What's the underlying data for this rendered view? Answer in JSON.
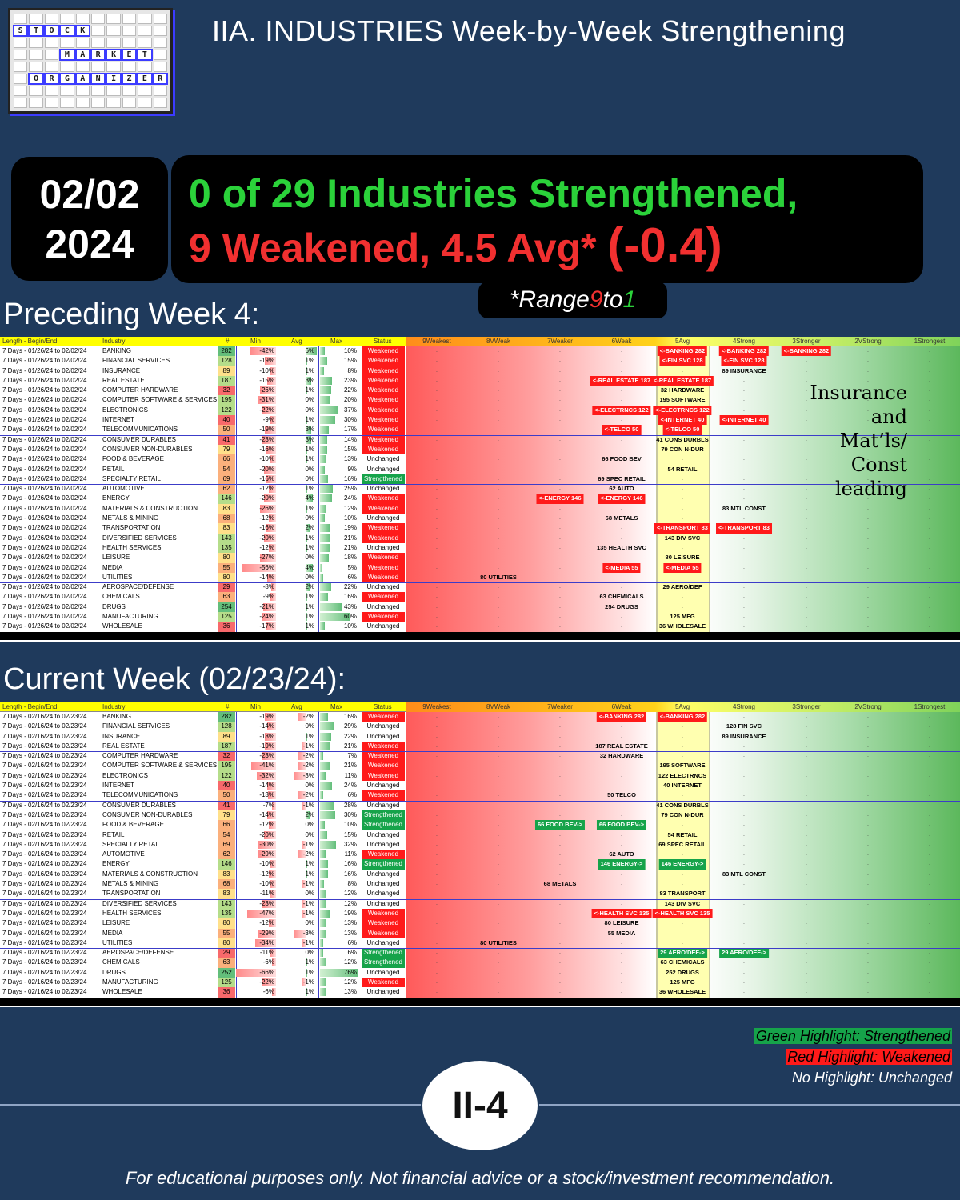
{
  "logo": {
    "words": [
      "STOCK",
      "MARKET",
      "ORGANIZER"
    ]
  },
  "title": "IIA. INDUSTRIES Week-by-Week Strengthening",
  "date": {
    "line1": "02/02",
    "line2": "2024"
  },
  "headline": {
    "line1": "0 of 29 Industries Strengthened,",
    "line2": "9 Weakened, 4.5 Avg*",
    "change": "(-0.4)"
  },
  "range": {
    "prefix": "*Range ",
    "high": "9",
    "mid": " to ",
    "low": "1"
  },
  "colors": {
    "green": "#16a34a",
    "red": "#ff1a1a",
    "headline_green": "#2bd23a",
    "headline_red": "#f13030",
    "background": "#1f3a5c"
  },
  "table_headers": {
    "length": "Length - Begin/End",
    "industry": "Industry",
    "count": "#",
    "min": "Min",
    "avg": "Avg",
    "max": "Max",
    "status": "Status",
    "scale": [
      "9Weakest",
      "8VWeak",
      "7Weaker",
      "6Weak",
      "5Avg",
      "4Strong",
      "3Stronger",
      "2VStrong",
      "1Strongest"
    ]
  },
  "preceding": {
    "title": "Preceding Week 4:",
    "period": "7 Days - 01/26/24 to 02/02/24",
    "note": "Insurance and Mat’ls/ Const leading",
    "rows": [
      {
        "industry": "BANKING",
        "count": "282",
        "min": "-42%",
        "avg": "6%",
        "max": "10%",
        "status": "Weakened",
        "labels": [
          [
            4,
            "<-BANKING 282",
            "r"
          ],
          [
            5,
            "<-BANKING 282",
            "r"
          ],
          [
            6,
            "<-BANKING 282",
            "r"
          ]
        ]
      },
      {
        "industry": "FINANCIAL SERVICES",
        "count": "128",
        "min": "-19%",
        "avg": "1%",
        "max": "15%",
        "status": "Weakened",
        "labels": [
          [
            4,
            "<-FIN SVC 128",
            "r"
          ],
          [
            5,
            "<-FIN SVC 128",
            "r"
          ]
        ]
      },
      {
        "industry": "INSURANCE",
        "count": "89",
        "min": "-10%",
        "avg": "1%",
        "max": "8%",
        "status": "Weakened",
        "labels": [
          [
            5,
            "89 INSURANCE",
            ""
          ]
        ]
      },
      {
        "industry": "REAL ESTATE",
        "count": "187",
        "min": "-15%",
        "avg": "3%",
        "max": "23%",
        "status": "Weakened",
        "labels": [
          [
            3,
            "<-REAL ESTATE 187",
            "r"
          ],
          [
            4,
            "<-REAL ESTATE 187",
            "r"
          ]
        ]
      },
      {
        "industry": "COMPUTER HARDWARE",
        "count": "32",
        "min": "-26%",
        "avg": "1%",
        "max": "22%",
        "status": "Weakened",
        "labels": [
          [
            4,
            "32 HARDWARE",
            ""
          ]
        ]
      },
      {
        "industry": "COMPUTER SOFTWARE & SERVICES",
        "count": "195",
        "min": "-31%",
        "avg": "0%",
        "max": "20%",
        "status": "Weakened",
        "labels": [
          [
            4,
            "195 SOFTWARE",
            ""
          ]
        ]
      },
      {
        "industry": "ELECTRONICS",
        "count": "122",
        "min": "-22%",
        "avg": "0%",
        "max": "37%",
        "status": "Weakened",
        "labels": [
          [
            3,
            "<-ELECTRNCS 122",
            "r"
          ],
          [
            4,
            "<-ELECTRNCS 122",
            "r"
          ]
        ]
      },
      {
        "industry": "INTERNET",
        "count": "40",
        "min": "-9%",
        "avg": "1%",
        "max": "30%",
        "status": "Weakened",
        "labels": [
          [
            4,
            "<-INTERNET 40",
            "r"
          ],
          [
            5,
            "<-INTERNET 40",
            "r"
          ]
        ]
      },
      {
        "industry": "TELECOMMUNICATIONS",
        "count": "50",
        "min": "-19%",
        "avg": "3%",
        "max": "17%",
        "status": "Weakened",
        "labels": [
          [
            3,
            "<-TELCO 50",
            "r"
          ],
          [
            4,
            "<-TELCO 50",
            "r"
          ]
        ]
      },
      {
        "industry": "CONSUMER DURABLES",
        "count": "41",
        "min": "-23%",
        "avg": "3%",
        "max": "14%",
        "status": "Weakened",
        "labels": [
          [
            4,
            "41 CONS DURBLS",
            ""
          ]
        ]
      },
      {
        "industry": "CONSUMER NON-DURABLES",
        "count": "79",
        "min": "-16%",
        "avg": "1%",
        "max": "15%",
        "status": "Weakened",
        "labels": [
          [
            4,
            "79 CON N-DUR",
            ""
          ]
        ]
      },
      {
        "industry": "FOOD & BEVERAGE",
        "count": "66",
        "min": "-10%",
        "avg": "1%",
        "max": "13%",
        "status": "Unchanged",
        "labels": [
          [
            3,
            "66 FOOD BEV",
            ""
          ]
        ]
      },
      {
        "industry": "RETAIL",
        "count": "54",
        "min": "-20%",
        "avg": "0%",
        "max": "9%",
        "status": "Unchanged",
        "labels": [
          [
            4,
            "54 RETAIL",
            ""
          ]
        ]
      },
      {
        "industry": "SPECIALTY RETAIL",
        "count": "69",
        "min": "-16%",
        "avg": "0%",
        "max": "16%",
        "status": "Strengthened",
        "labels": [
          [
            3,
            "69 SPEC RETAIL",
            ""
          ]
        ]
      },
      {
        "industry": "AUTOMOTIVE",
        "count": "62",
        "min": "-12%",
        "avg": "1%",
        "max": "25%",
        "status": "Unchanged",
        "labels": [
          [
            3,
            "62 AUTO",
            ""
          ]
        ]
      },
      {
        "industry": "ENERGY",
        "count": "146",
        "min": "-20%",
        "avg": "4%",
        "max": "24%",
        "status": "Weakened",
        "labels": [
          [
            2,
            "<-ENERGY 146",
            "r"
          ],
          [
            3,
            "<-ENERGY 146",
            "r"
          ]
        ]
      },
      {
        "industry": "MATERIALS & CONSTRUCTION",
        "count": "83",
        "min": "-26%",
        "avg": "1%",
        "max": "12%",
        "status": "Weakened",
        "labels": [
          [
            5,
            "83 MTL CONST",
            ""
          ]
        ]
      },
      {
        "industry": "METALS & MINING",
        "count": "68",
        "min": "-12%",
        "avg": "0%",
        "max": "10%",
        "status": "Unchanged",
        "labels": [
          [
            3,
            "68 METALS",
            ""
          ]
        ]
      },
      {
        "industry": "TRANSPORTATION",
        "count": "83",
        "min": "-16%",
        "avg": "2%",
        "max": "19%",
        "status": "Weakened",
        "labels": [
          [
            4,
            "<-TRANSPORT 83",
            "r"
          ],
          [
            5,
            "<-TRANSPORT 83",
            "r"
          ]
        ]
      },
      {
        "industry": "DIVERSIFIED SERVICES",
        "count": "143",
        "min": "-20%",
        "avg": "1%",
        "max": "21%",
        "status": "Weakened",
        "labels": [
          [
            4,
            "143 DIV SVC",
            ""
          ]
        ]
      },
      {
        "industry": "HEALTH SERVICES",
        "count": "135",
        "min": "-12%",
        "avg": "1%",
        "max": "21%",
        "status": "Unchanged",
        "labels": [
          [
            3,
            "135 HEALTH SVC",
            ""
          ]
        ]
      },
      {
        "industry": "LEISURE",
        "count": "80",
        "min": "-27%",
        "avg": "0%",
        "max": "18%",
        "status": "Weakened",
        "labels": [
          [
            4,
            "80 LEISURE",
            ""
          ]
        ]
      },
      {
        "industry": "MEDIA",
        "count": "55",
        "min": "-56%",
        "avg": "4%",
        "max": "5%",
        "status": "Weakened",
        "labels": [
          [
            3,
            "<-MEDIA 55",
            "r"
          ],
          [
            4,
            "<-MEDIA 55",
            "r"
          ]
        ]
      },
      {
        "industry": "UTILITIES",
        "count": "80",
        "min": "-14%",
        "avg": "0%",
        "max": "6%",
        "status": "Weakened",
        "labels": [
          [
            1,
            "80 UTILITIES",
            ""
          ]
        ]
      },
      {
        "industry": "AEROSPACE/DEFENSE",
        "count": "29",
        "min": "-8%",
        "avg": "2%",
        "max": "22%",
        "status": "Unchanged",
        "labels": [
          [
            4,
            "29 AERO/DEF",
            ""
          ]
        ]
      },
      {
        "industry": "CHEMICALS",
        "count": "63",
        "min": "-9%",
        "avg": "1%",
        "max": "16%",
        "status": "Weakened",
        "labels": [
          [
            3,
            "63 CHEMICALS",
            ""
          ]
        ]
      },
      {
        "industry": "DRUGS",
        "count": "254",
        "min": "-21%",
        "avg": "1%",
        "max": "43%",
        "status": "Unchanged",
        "labels": [
          [
            3,
            "254 DRUGS",
            ""
          ]
        ]
      },
      {
        "industry": "MANUFACTURING",
        "count": "125",
        "min": "-24%",
        "avg": "1%",
        "max": "60%",
        "status": "Weakened",
        "labels": [
          [
            4,
            "125 MFG",
            ""
          ]
        ]
      },
      {
        "industry": "WHOLESALE",
        "count": "36",
        "min": "-17%",
        "avg": "1%",
        "max": "10%",
        "status": "Unchanged",
        "labels": [
          [
            4,
            "36 WHOLESALE",
            ""
          ]
        ]
      }
    ]
  },
  "current": {
    "title": "Current Week (02/23/24):",
    "period": "7 Days - 02/16/24 to 02/23/24",
    "rows": [
      {
        "industry": "BANKING",
        "count": "282",
        "min": "-19%",
        "avg": "-2%",
        "max": "16%",
        "status": "Weakened",
        "labels": [
          [
            3,
            "<-BANKING 282",
            "r"
          ],
          [
            4,
            "<-BANKING 282",
            "r"
          ]
        ]
      },
      {
        "industry": "FINANCIAL SERVICES",
        "count": "128",
        "min": "-14%",
        "avg": "0%",
        "max": "29%",
        "status": "Unchanged",
        "labels": [
          [
            5,
            "128 FIN SVC",
            ""
          ]
        ]
      },
      {
        "industry": "INSURANCE",
        "count": "89",
        "min": "-18%",
        "avg": "1%",
        "max": "22%",
        "status": "Unchanged",
        "labels": [
          [
            5,
            "89 INSURANCE",
            ""
          ]
        ]
      },
      {
        "industry": "REAL ESTATE",
        "count": "187",
        "min": "-19%",
        "avg": "-1%",
        "max": "21%",
        "status": "Weakened",
        "labels": [
          [
            3,
            "187 REAL ESTATE",
            ""
          ]
        ]
      },
      {
        "industry": "COMPUTER HARDWARE",
        "count": "32",
        "min": "-23%",
        "avg": "-2%",
        "max": "7%",
        "status": "Weakened",
        "labels": [
          [
            3,
            "32 HARDWARE",
            ""
          ]
        ]
      },
      {
        "industry": "COMPUTER SOFTWARE & SERVICES",
        "count": "195",
        "min": "-41%",
        "avg": "-2%",
        "max": "21%",
        "status": "Weakened",
        "labels": [
          [
            4,
            "195 SOFTWARE",
            ""
          ]
        ]
      },
      {
        "industry": "ELECTRONICS",
        "count": "122",
        "min": "-32%",
        "avg": "-3%",
        "max": "11%",
        "status": "Weakened",
        "labels": [
          [
            4,
            "122 ELECTRNCS",
            ""
          ]
        ]
      },
      {
        "industry": "INTERNET",
        "count": "40",
        "min": "-14%",
        "avg": "0%",
        "max": "24%",
        "status": "Unchanged",
        "labels": [
          [
            4,
            "40 INTERNET",
            ""
          ]
        ]
      },
      {
        "industry": "TELECOMMUNICATIONS",
        "count": "50",
        "min": "-13%",
        "avg": "-2%",
        "max": "6%",
        "status": "Weakened",
        "labels": [
          [
            3,
            "50 TELCO",
            ""
          ]
        ]
      },
      {
        "industry": "CONSUMER DURABLES",
        "count": "41",
        "min": "-7%",
        "avg": "-1%",
        "max": "28%",
        "status": "Unchanged",
        "labels": [
          [
            4,
            "41 CONS DURBLS",
            ""
          ]
        ]
      },
      {
        "industry": "CONSUMER NON-DURABLES",
        "count": "79",
        "min": "-14%",
        "avg": "2%",
        "max": "30%",
        "status": "Strengthened",
        "labels": [
          [
            4,
            "79 CON N-DUR",
            ""
          ]
        ]
      },
      {
        "industry": "FOOD & BEVERAGE",
        "count": "66",
        "min": "-12%",
        "avg": "0%",
        "max": "10%",
        "status": "Strengthened",
        "labels": [
          [
            2,
            "66 FOOD BEV->",
            "g"
          ],
          [
            3,
            "66 FOOD BEV->",
            "g"
          ]
        ]
      },
      {
        "industry": "RETAIL",
        "count": "54",
        "min": "-20%",
        "avg": "0%",
        "max": "15%",
        "status": "Unchanged",
        "labels": [
          [
            4,
            "54 RETAIL",
            ""
          ]
        ]
      },
      {
        "industry": "SPECIALTY RETAIL",
        "count": "69",
        "min": "-30%",
        "avg": "-1%",
        "max": "32%",
        "status": "Unchanged",
        "labels": [
          [
            4,
            "69 SPEC RETAIL",
            ""
          ]
        ]
      },
      {
        "industry": "AUTOMOTIVE",
        "count": "62",
        "min": "-29%",
        "avg": "-2%",
        "max": "11%",
        "status": "Weakened",
        "labels": [
          [
            3,
            "62 AUTO",
            ""
          ]
        ]
      },
      {
        "industry": "ENERGY",
        "count": "146",
        "min": "-10%",
        "avg": "1%",
        "max": "16%",
        "status": "Strengthened",
        "labels": [
          [
            3,
            "146 ENERGY->",
            "g"
          ],
          [
            4,
            "146 ENERGY->",
            "g"
          ]
        ]
      },
      {
        "industry": "MATERIALS & CONSTRUCTION",
        "count": "83",
        "min": "-12%",
        "avg": "1%",
        "max": "16%",
        "status": "Unchanged",
        "labels": [
          [
            5,
            "83 MTL CONST",
            ""
          ]
        ]
      },
      {
        "industry": "METALS & MINING",
        "count": "68",
        "min": "-10%",
        "avg": "-1%",
        "max": "8%",
        "status": "Unchanged",
        "labels": [
          [
            2,
            "68 METALS",
            ""
          ]
        ]
      },
      {
        "industry": "TRANSPORTATION",
        "count": "83",
        "min": "-11%",
        "avg": "0%",
        "max": "12%",
        "status": "Unchanged",
        "labels": [
          [
            4,
            "83 TRANSPORT",
            ""
          ]
        ]
      },
      {
        "industry": "DIVERSIFIED SERVICES",
        "count": "143",
        "min": "-23%",
        "avg": "-1%",
        "max": "12%",
        "status": "Unchanged",
        "labels": [
          [
            4,
            "143 DIV SVC",
            ""
          ]
        ]
      },
      {
        "industry": "HEALTH SERVICES",
        "count": "135",
        "min": "-47%",
        "avg": "-1%",
        "max": "19%",
        "status": "Weakened",
        "labels": [
          [
            3,
            "<-HEALTH SVC 135",
            "r"
          ],
          [
            4,
            "<-HEALTH SVC 135",
            "r"
          ]
        ]
      },
      {
        "industry": "LEISURE",
        "count": "80",
        "min": "-12%",
        "avg": "0%",
        "max": "13%",
        "status": "Weakened",
        "labels": [
          [
            3,
            "80 LEISURE",
            ""
          ]
        ]
      },
      {
        "industry": "MEDIA",
        "count": "55",
        "min": "-29%",
        "avg": "-3%",
        "max": "13%",
        "status": "Weakened",
        "labels": [
          [
            3,
            "55 MEDIA",
            ""
          ]
        ]
      },
      {
        "industry": "UTILITIES",
        "count": "80",
        "min": "-34%",
        "avg": "-1%",
        "max": "6%",
        "status": "Unchanged",
        "labels": [
          [
            1,
            "80 UTILITIES",
            ""
          ]
        ]
      },
      {
        "industry": "AEROSPACE/DEFENSE",
        "count": "29",
        "min": "-11%",
        "avg": "0%",
        "max": "6%",
        "status": "Strengthened",
        "labels": [
          [
            4,
            "29 AERO/DEF->",
            "g"
          ],
          [
            5,
            "29 AERO/DEF->",
            "g"
          ]
        ]
      },
      {
        "industry": "CHEMICALS",
        "count": "63",
        "min": "-6%",
        "avg": "1%",
        "max": "12%",
        "status": "Strengthened",
        "labels": [
          [
            4,
            "63 CHEMICALS",
            ""
          ]
        ]
      },
      {
        "industry": "DRUGS",
        "count": "252",
        "min": "-66%",
        "avg": "1%",
        "max": "76%",
        "status": "Unchanged",
        "labels": [
          [
            4,
            "252 DRUGS",
            ""
          ]
        ]
      },
      {
        "industry": "MANUFACTURING",
        "count": "125",
        "min": "-22%",
        "avg": "-1%",
        "max": "12%",
        "status": "Weakened",
        "labels": [
          [
            4,
            "125 MFG",
            ""
          ]
        ]
      },
      {
        "industry": "WHOLESALE",
        "count": "36",
        "min": "-6%",
        "avg": "1%",
        "max": "13%",
        "status": "Unchanged",
        "labels": [
          [
            4,
            "36 WHOLESALE",
            ""
          ]
        ]
      }
    ]
  },
  "legend": {
    "green": "Green Highlight: Strengthened",
    "red": "Red Highlight: Weakened",
    "none": "No Highlight: Unchanged"
  },
  "page_badge": "II-4",
  "disclaimer": "For educational purposes only. Not financial advice or a stock/investment recommendation."
}
